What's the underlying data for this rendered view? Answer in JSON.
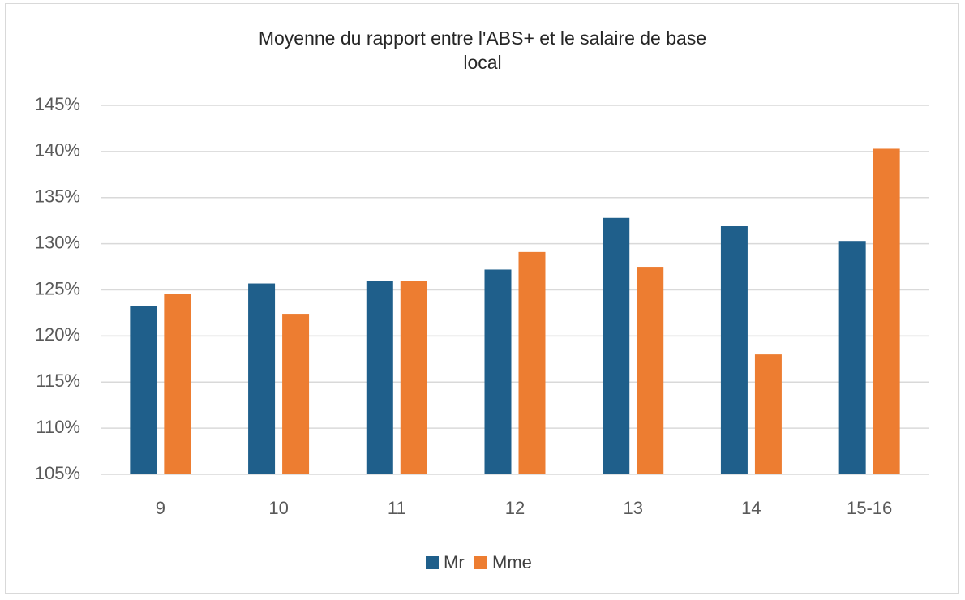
{
  "chart_data": {
    "type": "bar",
    "title": "Moyenne du rapport entre l'ABS+ et le salaire de base local",
    "categories": [
      "9",
      "10",
      "11",
      "12",
      "13",
      "14",
      "15-16"
    ],
    "series": [
      {
        "name": "Mr",
        "color": "#1f5f8b",
        "values": [
          123.2,
          125.7,
          126.0,
          127.2,
          132.8,
          131.9,
          130.3
        ]
      },
      {
        "name": "Mme",
        "color": "#ed7d31",
        "values": [
          124.6,
          122.4,
          126.0,
          129.1,
          127.5,
          118.0,
          140.3
        ]
      }
    ],
    "ylim": [
      105,
      145
    ],
    "yticks": [
      {
        "value": 105,
        "label": "105%"
      },
      {
        "value": 110,
        "label": "110%"
      },
      {
        "value": 115,
        "label": "115%"
      },
      {
        "value": 120,
        "label": "120%"
      },
      {
        "value": 125,
        "label": "125%"
      },
      {
        "value": 130,
        "label": "130%"
      },
      {
        "value": 135,
        "label": "135%"
      },
      {
        "value": 140,
        "label": "140%"
      },
      {
        "value": 145,
        "label": "145%"
      }
    ],
    "grid": true,
    "legend": "bottom"
  }
}
